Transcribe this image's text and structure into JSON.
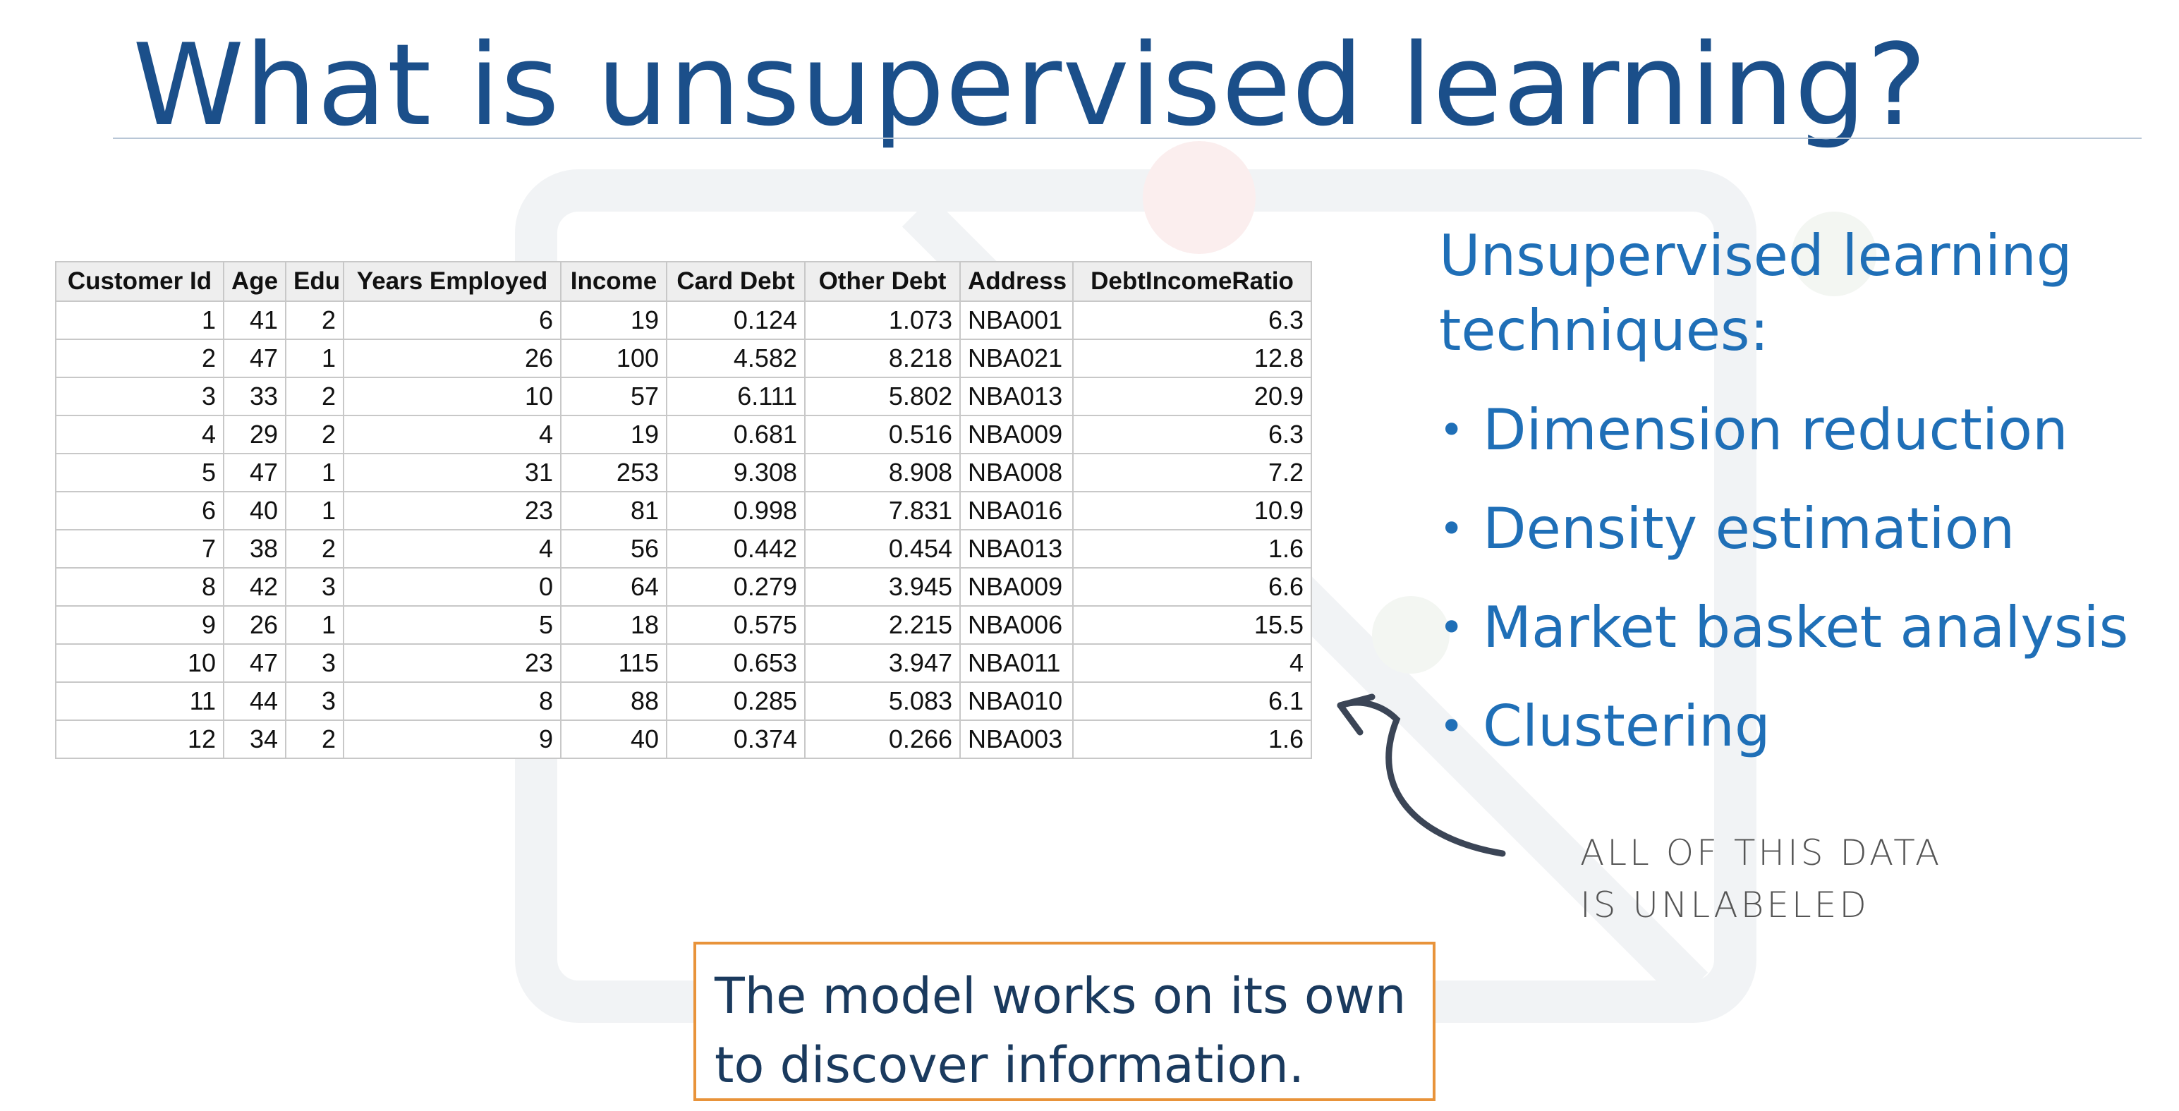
{
  "slide": {
    "title": "What is unsupervised learning?"
  },
  "table": {
    "headers": [
      "Customer Id",
      "Age",
      "Edu",
      "Years Employed",
      "Income",
      "Card Debt",
      "Other Debt",
      "Address",
      "DebtIncomeRatio"
    ],
    "rows": [
      [
        "1",
        "41",
        "2",
        "6",
        "19",
        "0.124",
        "1.073",
        "NBA001",
        "6.3"
      ],
      [
        "2",
        "47",
        "1",
        "26",
        "100",
        "4.582",
        "8.218",
        "NBA021",
        "12.8"
      ],
      [
        "3",
        "33",
        "2",
        "10",
        "57",
        "6.111",
        "5.802",
        "NBA013",
        "20.9"
      ],
      [
        "4",
        "29",
        "2",
        "4",
        "19",
        "0.681",
        "0.516",
        "NBA009",
        "6.3"
      ],
      [
        "5",
        "47",
        "1",
        "31",
        "253",
        "9.308",
        "8.908",
        "NBA008",
        "7.2"
      ],
      [
        "6",
        "40",
        "1",
        "23",
        "81",
        "0.998",
        "7.831",
        "NBA016",
        "10.9"
      ],
      [
        "7",
        "38",
        "2",
        "4",
        "56",
        "0.442",
        "0.454",
        "NBA013",
        "1.6"
      ],
      [
        "8",
        "42",
        "3",
        "0",
        "64",
        "0.279",
        "3.945",
        "NBA009",
        "6.6"
      ],
      [
        "9",
        "26",
        "1",
        "5",
        "18",
        "0.575",
        "2.215",
        "NBA006",
        "15.5"
      ],
      [
        "10",
        "47",
        "3",
        "23",
        "115",
        "0.653",
        "3.947",
        "NBA011",
        "4"
      ],
      [
        "11",
        "44",
        "3",
        "8",
        "88",
        "0.285",
        "5.083",
        "NBA010",
        "6.1"
      ],
      [
        "12",
        "34",
        "2",
        "9",
        "40",
        "0.374",
        "0.266",
        "NBA003",
        "1.6"
      ]
    ]
  },
  "techniques": {
    "heading_line1": "Unsupervised learning",
    "heading_line2": "techniques:",
    "bullet_glyph": "•",
    "items": [
      "Dimension reduction",
      "Density estimation",
      "Market basket analysis",
      "Clustering"
    ]
  },
  "annotation": {
    "line1": "ALL OF THIS DATA",
    "line2": "IS UNLABELED",
    "arrow_icon": "curved-arrow-icon"
  },
  "callout": {
    "line1": "The model works on its own",
    "line2": "to discover information."
  },
  "colors": {
    "title": "#1b4f8a",
    "accent_blue": "#1f6fb7",
    "callout_border": "#e8933a",
    "annotation_gray": "#555555"
  }
}
